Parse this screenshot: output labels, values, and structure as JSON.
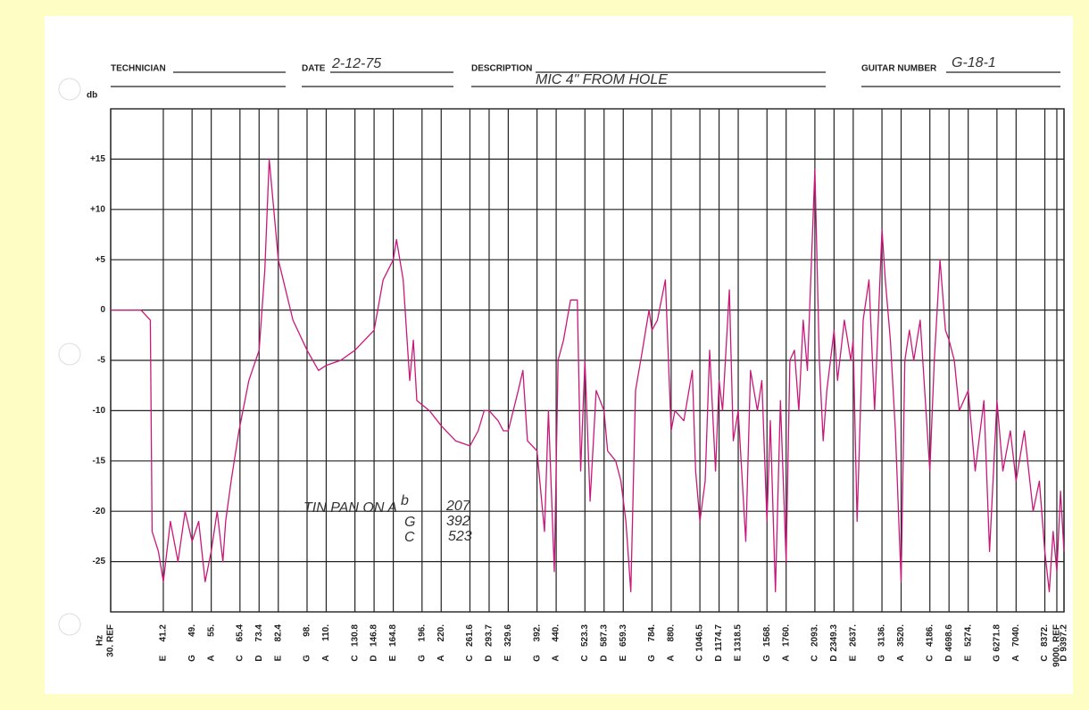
{
  "form": {
    "technician_label": "TECHNICIAN",
    "date_label": "DATE",
    "date": "2-12-75",
    "description_label": "DESCRIPTION",
    "description": "MIC 4\" FROM HOLE",
    "guitar_number_label": "GUITAR NUMBER",
    "guitar_number": "G-18-1"
  },
  "chart_data": {
    "type": "line",
    "y_label": "db",
    "x_label": "Hz",
    "xscale": "log",
    "grid": true,
    "color": "#c8187a",
    "xlim": [
      30,
      9397.2
    ],
    "ylim": [
      -30,
      20
    ],
    "yticks": [
      {
        "value": 15,
        "label": "+15"
      },
      {
        "value": 10,
        "label": "+10"
      },
      {
        "value": 5,
        "label": "+5"
      },
      0,
      -5,
      -10,
      -15,
      -20,
      -25
    ],
    "xticks": [
      {
        "value": 30,
        "label": "30. REF"
      },
      41.2,
      {
        "value": 49,
        "label": "49."
      },
      {
        "value": 55,
        "label": "55."
      },
      65.4,
      73.4,
      82.4,
      {
        "value": 98,
        "label": "98."
      },
      {
        "value": 110,
        "label": "110."
      },
      130.8,
      146.8,
      164.8,
      {
        "value": 196,
        "label": "196."
      },
      {
        "value": 220,
        "label": "220."
      },
      261.6,
      293.7,
      329.6,
      {
        "value": 392,
        "label": "392."
      },
      {
        "value": 440,
        "label": "440."
      },
      523.3,
      587.3,
      659.3,
      {
        "value": 784,
        "label": "784."
      },
      {
        "value": 880,
        "label": "880."
      },
      1046.5,
      1174.7,
      1318.5,
      {
        "value": 1568,
        "label": "1568."
      },
      {
        "value": 1760,
        "label": "1760."
      },
      {
        "value": 2093,
        "label": "2093."
      },
      2349.3,
      {
        "value": 2637,
        "label": "2637."
      },
      {
        "value": 3136,
        "label": "3136."
      },
      {
        "value": 3520,
        "label": "3520."
      },
      {
        "value": 4186,
        "label": "4186."
      },
      4698.6,
      {
        "value": 5274,
        "label": "5274."
      },
      6271.8,
      {
        "value": 7040,
        "label": "7040."
      },
      {
        "value": 8372,
        "label": "8372."
      },
      {
        "value": 9000,
        "label": "9000. REF"
      },
      9397.2
    ],
    "x_notes": [
      null,
      "E",
      "G",
      "A",
      "C",
      "D",
      "E",
      "G",
      "A",
      "C",
      "D",
      "E",
      "G",
      "A",
      "C",
      "D",
      "E",
      "G",
      "A",
      "C",
      "D",
      "E",
      "G",
      "A",
      "C",
      "D",
      "E",
      "G",
      "A",
      "C",
      "D",
      "E",
      "G",
      "A",
      "C",
      "D",
      "E",
      "G",
      "A",
      "C",
      null,
      "D"
    ],
    "annotations": [
      "TIN PAN ON A",
      "b",
      "207",
      "G",
      "392",
      "C",
      "523"
    ],
    "x": [
      30,
      33,
      36,
      38.1,
      38.5,
      40,
      41.2,
      43,
      45,
      47,
      49,
      51,
      53,
      55,
      57,
      59,
      60,
      62,
      65,
      69,
      73.4,
      76,
      78,
      82.4,
      90,
      98,
      105,
      110,
      120,
      130.8,
      146.8,
      155,
      164.8,
      168,
      175,
      182,
      186,
      190,
      205,
      220,
      240,
      261.6,
      275,
      285,
      293.7,
      310,
      320,
      329.6,
      350,
      360,
      370,
      392,
      410,
      420,
      435,
      445,
      460,
      480,
      500,
      510,
      523.3,
      540,
      560,
      587.3,
      600,
      630,
      650,
      670,
      690,
      710,
      740,
      770,
      784,
      810,
      850,
      880,
      900,
      950,
      1000,
      1020,
      1046.5,
      1080,
      1110,
      1150,
      1174.7,
      1200,
      1250,
      1280,
      1318.5,
      1380,
      1420,
      1480,
      1520,
      1568,
      1600,
      1650,
      1700,
      1760,
      1800,
      1850,
      1900,
      1950,
      2000,
      2093,
      2150,
      2200,
      2250,
      2349.3,
      2400,
      2500,
      2600,
      2637,
      2700,
      2800,
      2900,
      3000,
      3136,
      3200,
      3300,
      3400,
      3520,
      3600,
      3700,
      3800,
      3950,
      4186,
      4300,
      4450,
      4600,
      4698.6,
      4850,
      5000,
      5274,
      5500,
      5800,
      6000,
      6271.8,
      6500,
      6800,
      7040,
      7400,
      7800,
      8100,
      8372,
      8600,
      8800,
      9000,
      9200,
      9397.2
    ],
    "values": [
      0,
      0,
      0,
      -1,
      -22,
      -24,
      -27,
      -21,
      -25,
      -20,
      -23,
      -21,
      -27,
      -24,
      -20,
      -25,
      -21,
      -17,
      -12,
      -7,
      -4,
      4,
      15,
      5,
      -1,
      -4,
      -6,
      -5.5,
      -5,
      -4,
      -2,
      3,
      5,
      7,
      3,
      -7,
      -3,
      -9,
      -10,
      -11.5,
      -13,
      -13.5,
      -12,
      -10,
      -10,
      -11,
      -12,
      -12,
      -8,
      -6,
      -13,
      -14,
      -22,
      -10,
      -26,
      -5,
      -3,
      1,
      1,
      -16,
      -5,
      -19,
      -8,
      -10,
      -14,
      -15,
      -17,
      -21,
      -28,
      -8,
      -4,
      0,
      -2,
      -1,
      3,
      -12,
      -10,
      -11,
      -6,
      -16,
      -21,
      -17,
      -4,
      -16,
      -7,
      -10,
      2,
      -13,
      -10,
      -23,
      -6,
      -10,
      -7,
      -21,
      -11,
      -28,
      -9,
      -25,
      -5,
      -4,
      -10,
      -1,
      -6,
      14,
      -5,
      -13,
      -8,
      -2,
      -7,
      -1,
      -5,
      -3,
      -21,
      -1,
      3,
      -10,
      8,
      3,
      -3,
      -12,
      -27,
      -5,
      -2,
      -5,
      -1,
      -16,
      -5,
      5,
      -2,
      -3,
      -5,
      -10,
      -8,
      -16,
      -9,
      -24,
      -9,
      -16,
      -12,
      -17,
      -12,
      -20,
      -17,
      -24,
      -28,
      -22,
      -26,
      -18,
      -24
    ]
  }
}
